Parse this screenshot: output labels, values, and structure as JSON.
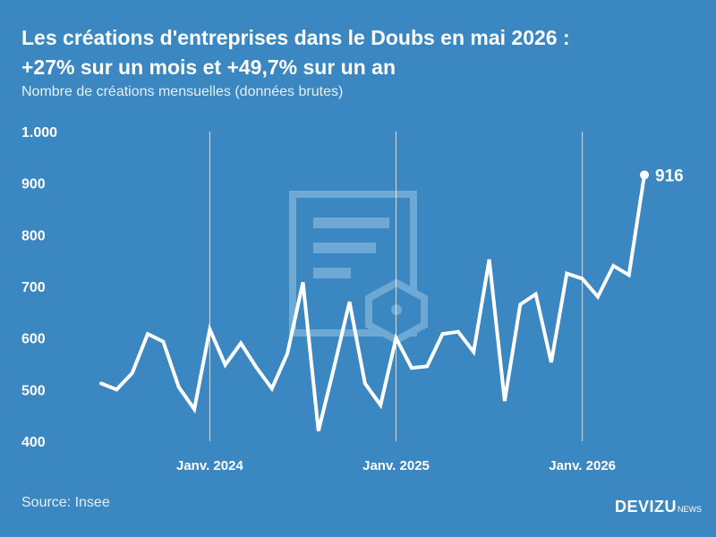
{
  "header": {
    "title_line1": "Les créations d'entreprises dans le Doubs en mai 2026 :",
    "title_line2": "+27% sur un mois et +49,7% sur un an",
    "subtitle": "Nombre de créations mensuelles (données brutes)"
  },
  "footer": {
    "source": "Source: Insee",
    "brand": "DEVIZU",
    "brand_sub": "NEWS"
  },
  "colors": {
    "background": "#3a87c2",
    "line": "#ffffff",
    "watermark": "#6ea9d6"
  },
  "chart_data": {
    "type": "line",
    "title": "Les créations d'entreprises dans le Doubs en mai 2026 : +27% sur un mois et +49,7% sur un an",
    "subtitle": "Nombre de créations mensuelles (données brutes)",
    "ylim": [
      400,
      1000
    ],
    "yticks": [
      400,
      500,
      600,
      700,
      800,
      900,
      1000
    ],
    "ytick_labels": [
      "400",
      "500",
      "600",
      "700",
      "800",
      "900",
      "1.000"
    ],
    "xlabels": [
      {
        "label": "Janv. 2024",
        "index": 7
      },
      {
        "label": "Janv. 2025",
        "index": 19
      },
      {
        "label": "Janv. 2026",
        "index": 31
      }
    ],
    "grid": "vertical lines at January",
    "series": [
      {
        "values": [
          512,
          500,
          532,
          608,
          593,
          505,
          462,
          617,
          548,
          590,
          543,
          502,
          570,
          708,
          420,
          542,
          670,
          512,
          470,
          600,
          542,
          545,
          608,
          612,
          573,
          752,
          478,
          665,
          685,
          553,
          725,
          715,
          680,
          740,
          722,
          916
        ]
      }
    ],
    "annotation": {
      "index": 35,
      "value": 916,
      "label": "916"
    }
  }
}
